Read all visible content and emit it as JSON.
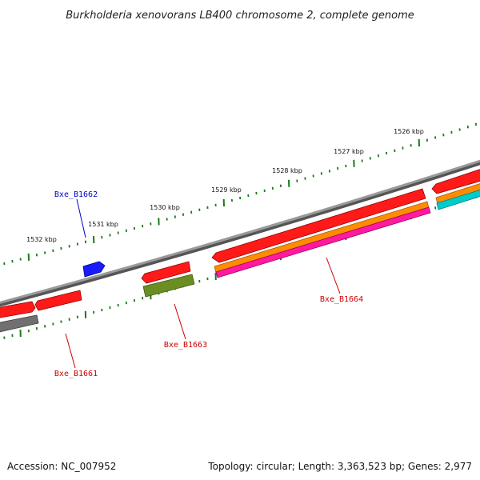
{
  "title": "Burkholderia xenovorans LB400 chromosome 2, complete genome",
  "footer": {
    "accession": "Accession: NC_007952",
    "summary": "Topology: circular; Length: 3,363,523 bp; Genes: 2,977"
  },
  "kbp_labels": [
    "1526 kbp",
    "1527 kbp",
    "1528 kbp",
    "1529 kbp",
    "1530 kbp",
    "1531 kbp",
    "1532 kbp"
  ],
  "gene_labels": {
    "b1661": "Bxe_B1661",
    "b1662": "Bxe_B1662",
    "b1663": "Bxe_B1663",
    "b1664": "Bxe_B1664"
  },
  "colors": {
    "backbone": "#808080",
    "tick": "#1a7a1a",
    "cds_red": "#ff1a1a",
    "cds_blue": "#1a1aff",
    "cds_green": "#6b8e23",
    "cds_gray": "#707070",
    "orange": "#ff8c00",
    "magenta": "#ff1aa0",
    "cyan": "#00cccc"
  }
}
